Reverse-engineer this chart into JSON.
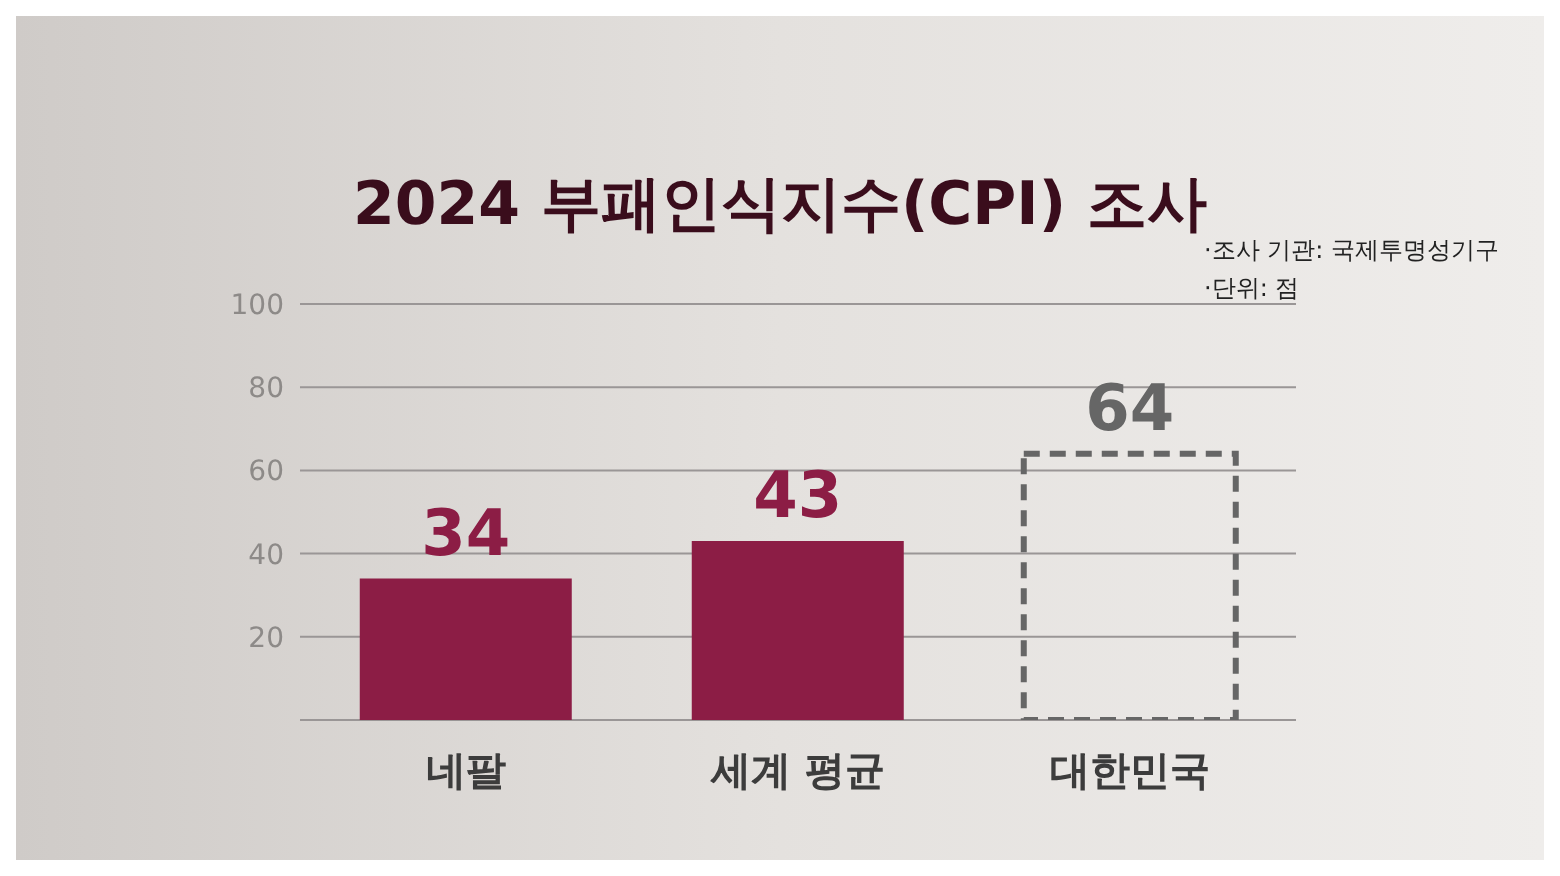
{
  "chart_data": {
    "type": "bar",
    "title": "2024 부패인식지수(CPI) 조사",
    "annotations": [
      "·조사 기관: 국제투명성기구",
      "·단위: 점"
    ],
    "categories": [
      "네팔",
      "세계 평균",
      "대한민국"
    ],
    "series": [
      {
        "color": "#8c1d45",
        "values": [
          34,
          43,
          null
        ]
      },
      {
        "color": "#666666",
        "values": [
          null,
          null,
          64
        ],
        "line_style": "dashed"
      }
    ],
    "stacked": true,
    "ylim": [
      0,
      100
    ],
    "yticks": [
      20,
      40,
      60,
      80,
      100
    ],
    "grid": "y",
    "data_labels": true
  }
}
